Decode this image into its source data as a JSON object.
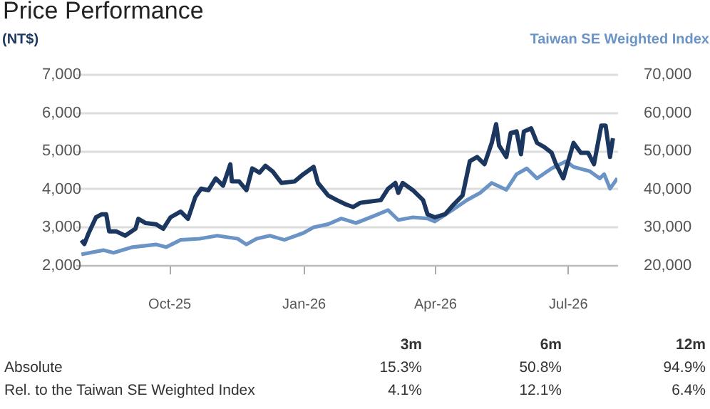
{
  "chart_data": {
    "type": "line",
    "title": "Price Performance",
    "ylabel": "(NT$)",
    "y2label": "Taiwan SE Weighted Index",
    "xlim": [
      "2025-07-29",
      "2026-08-04"
    ],
    "xticks": [
      {
        "value": "2025-10-01",
        "label": "Oct-25"
      },
      {
        "value": "2026-01-01",
        "label": "Jan-26"
      },
      {
        "value": "2026-04-01",
        "label": "Apr-26"
      },
      {
        "value": "2026-07-01",
        "label": "Jul-26"
      }
    ],
    "ylim": [
      2000,
      7000
    ],
    "yticks": [
      {
        "value": 2000,
        "label": "2,000"
      },
      {
        "value": 3000,
        "label": "3,000"
      },
      {
        "value": 4000,
        "label": "4,000"
      },
      {
        "value": 5000,
        "label": "5,000"
      },
      {
        "value": 6000,
        "label": "6,000"
      },
      {
        "value": 7000,
        "label": "7,000"
      }
    ],
    "y2lim": [
      20000,
      70000
    ],
    "y2ticks": [
      {
        "value": 20000,
        "label": "20,000"
      },
      {
        "value": 30000,
        "label": "30,000"
      },
      {
        "value": 40000,
        "label": "40,000"
      },
      {
        "value": 50000,
        "label": "50,000"
      },
      {
        "value": 60000,
        "label": "60,000"
      },
      {
        "value": 70000,
        "label": "70,000"
      }
    ],
    "grid": "y",
    "marker": "none",
    "line_style": "solid",
    "series": [
      {
        "axis": "y2",
        "color": "#6b94c6",
        "x": [
          "2025-08-02",
          "2025-08-17",
          "2025-08-24",
          "2025-09-06",
          "2025-09-22",
          "2025-09-29",
          "2025-10-09",
          "2025-10-22",
          "2025-11-03",
          "2025-11-17",
          "2025-11-23",
          "2025-11-30",
          "2025-12-09",
          "2025-12-19",
          "2026-01-01",
          "2026-01-08",
          "2026-01-18",
          "2026-01-27",
          "2026-02-06",
          "2026-02-16",
          "2026-02-28",
          "2026-03-07",
          "2026-03-17",
          "2026-03-27",
          "2026-04-01",
          "2026-04-13",
          "2026-04-23",
          "2026-05-02",
          "2026-05-10",
          "2026-05-20",
          "2026-05-27",
          "2026-06-03",
          "2026-06-10",
          "2026-06-20",
          "2026-06-30",
          "2026-07-05",
          "2026-07-16",
          "2026-07-23",
          "2026-07-26",
          "2026-07-30",
          "2026-08-04"
        ],
        "values": [
          22800,
          23900,
          23200,
          24700,
          25400,
          24700,
          26600,
          26900,
          27700,
          26900,
          25400,
          26900,
          27700,
          26600,
          28400,
          29900,
          30700,
          32200,
          31000,
          32500,
          34400,
          31800,
          32500,
          32200,
          31400,
          34400,
          37000,
          38900,
          41500,
          39700,
          43800,
          45300,
          42700,
          45300,
          47200,
          45700,
          44600,
          42700,
          43800,
          40000,
          42700
        ]
      },
      {
        "axis": "y",
        "color": "#1b365f",
        "x": [
          "2025-08-02",
          "2025-08-04",
          "2025-08-07",
          "2025-08-12",
          "2025-08-16",
          "2025-08-19",
          "2025-08-21",
          "2025-08-26",
          "2025-09-01",
          "2025-09-08",
          "2025-09-10",
          "2025-09-15",
          "2025-09-22",
          "2025-09-27",
          "2025-10-02",
          "2025-10-09",
          "2025-10-14",
          "2025-10-19",
          "2025-10-23",
          "2025-10-28",
          "2025-11-02",
          "2025-11-07",
          "2025-11-12",
          "2025-11-13",
          "2025-11-18",
          "2025-11-23",
          "2025-11-27",
          "2025-12-02",
          "2025-12-06",
          "2025-12-11",
          "2025-12-17",
          "2025-12-26",
          "2026-01-01",
          "2026-01-08",
          "2026-01-11",
          "2026-01-18",
          "2026-01-24",
          "2026-01-30",
          "2026-02-04",
          "2026-02-09",
          "2026-02-23",
          "2026-02-28",
          "2026-03-05",
          "2026-03-07",
          "2026-03-10",
          "2026-03-17",
          "2026-03-24",
          "2026-03-27",
          "2026-04-01",
          "2026-04-08",
          "2026-04-14",
          "2026-04-20",
          "2026-04-25",
          "2026-04-30",
          "2026-05-05",
          "2026-05-10",
          "2026-05-13",
          "2026-05-15",
          "2026-05-20",
          "2026-05-23",
          "2026-05-27",
          "2026-05-30",
          "2026-06-01",
          "2026-06-06",
          "2026-06-10",
          "2026-06-15",
          "2026-06-20",
          "2026-06-23",
          "2026-06-28",
          "2026-07-05",
          "2026-07-10",
          "2026-07-15",
          "2026-07-19",
          "2026-07-24",
          "2026-07-27",
          "2026-07-30",
          "2026-08-01"
        ],
        "values": [
          2650,
          2550,
          2840,
          3250,
          3330,
          3330,
          2880,
          2880,
          2770,
          2950,
          3210,
          3100,
          3070,
          2950,
          3250,
          3400,
          3210,
          3780,
          4000,
          3960,
          4270,
          4080,
          4640,
          4190,
          4190,
          3960,
          4530,
          4420,
          4600,
          4450,
          4150,
          4190,
          4380,
          4570,
          4150,
          3820,
          3700,
          3590,
          3520,
          3630,
          3700,
          4000,
          4150,
          3890,
          4150,
          3960,
          3700,
          3330,
          3250,
          3330,
          3590,
          3820,
          4720,
          4830,
          4640,
          5200,
          5690,
          5130,
          4830,
          5460,
          5500,
          4900,
          5500,
          5580,
          5200,
          5090,
          4940,
          4640,
          4270,
          5200,
          4940,
          4940,
          4640,
          5650,
          5650,
          4830,
          5320
        ]
      }
    ],
    "annotations": [
      "3m",
      "6m",
      "12m",
      "Absolute",
      "15.3%",
      "50.8%",
      "94.9%",
      "Rel. to the Taiwan SE Weighted Index",
      "4.1%",
      "12.1%",
      "6.4%"
    ]
  }
}
